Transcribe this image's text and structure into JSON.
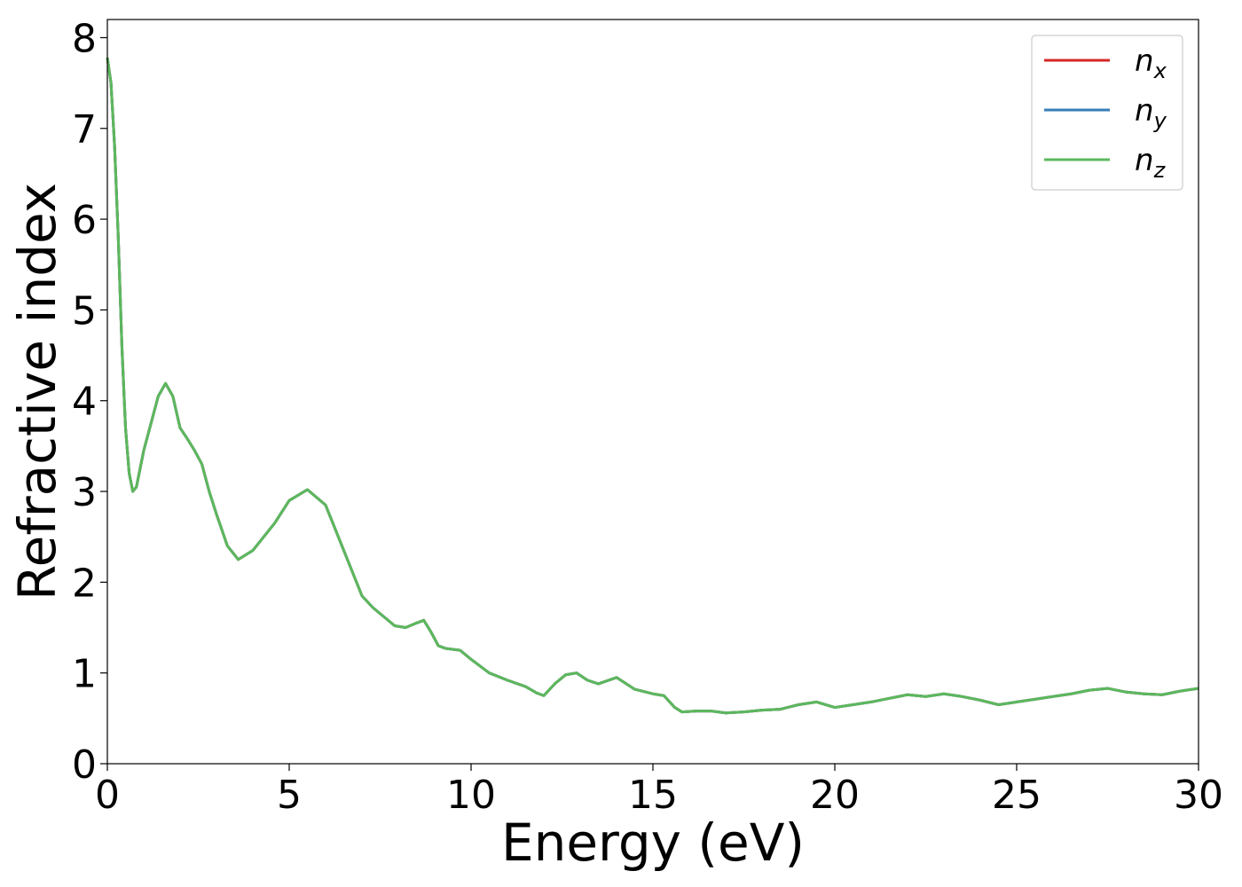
{
  "chart_data": {
    "type": "line",
    "xlabel": "Energy (eV)",
    "ylabel": "Refractive index",
    "xlim": [
      0,
      30
    ],
    "ylim": [
      0,
      8.2
    ],
    "xticks": [
      0,
      5,
      10,
      15,
      20,
      25,
      30
    ],
    "yticks": [
      0,
      1,
      2,
      3,
      4,
      5,
      6,
      7,
      8
    ],
    "grid": false,
    "legend_position": "top-right",
    "series": [
      {
        "name": "n_x",
        "legend_base": "n",
        "legend_sub": "x",
        "color": "#d62728",
        "x": [
          0,
          0.1,
          0.2,
          0.3,
          0.4,
          0.5,
          0.6,
          0.7,
          0.8,
          0.9,
          1.0,
          1.2,
          1.4,
          1.6,
          1.8,
          2.0,
          2.2,
          2.4,
          2.6,
          2.8,
          3.0,
          3.3,
          3.6,
          4.0,
          4.3,
          4.6,
          5.0,
          5.5,
          6.0,
          6.3,
          6.6,
          7.0,
          7.3,
          7.6,
          7.9,
          8.2,
          8.5,
          8.7,
          8.9,
          9.1,
          9.3,
          9.7,
          10.0,
          10.5,
          11.0,
          11.5,
          11.8,
          12.0,
          12.3,
          12.6,
          12.9,
          13.2,
          13.5,
          14.0,
          14.5,
          15.0,
          15.3,
          15.6,
          15.8,
          16.2,
          16.6,
          17.0,
          17.5,
          18.0,
          18.5,
          19.0,
          19.5,
          20.0,
          20.5,
          21.0,
          21.5,
          22.0,
          22.5,
          23.0,
          23.5,
          24.0,
          24.5,
          25.0,
          25.5,
          26.0,
          26.5,
          27.0,
          27.5,
          28.0,
          28.5,
          29.0,
          29.5,
          30.0
        ],
        "y": [
          7.78,
          7.5,
          6.8,
          5.8,
          4.6,
          3.7,
          3.2,
          3.0,
          3.05,
          3.25,
          3.45,
          3.75,
          4.05,
          4.19,
          4.05,
          3.7,
          3.58,
          3.45,
          3.3,
          3.0,
          2.75,
          2.4,
          2.25,
          2.35,
          2.5,
          2.65,
          2.9,
          3.02,
          2.85,
          2.55,
          2.25,
          1.85,
          1.72,
          1.62,
          1.52,
          1.5,
          1.55,
          1.58,
          1.45,
          1.3,
          1.27,
          1.25,
          1.15,
          1.0,
          0.92,
          0.85,
          0.78,
          0.75,
          0.88,
          0.98,
          1.0,
          0.92,
          0.88,
          0.95,
          0.82,
          0.77,
          0.75,
          0.62,
          0.57,
          0.58,
          0.58,
          0.56,
          0.57,
          0.59,
          0.6,
          0.65,
          0.68,
          0.62,
          0.65,
          0.68,
          0.72,
          0.76,
          0.74,
          0.77,
          0.74,
          0.7,
          0.65,
          0.68,
          0.71,
          0.74,
          0.77,
          0.81,
          0.83,
          0.79,
          0.77,
          0.76,
          0.8,
          0.83
        ]
      },
      {
        "name": "n_y",
        "legend_base": "n",
        "legend_sub": "y",
        "color": "#377eb8",
        "x": [
          0,
          0.1,
          0.2,
          0.3,
          0.4,
          0.5,
          0.6,
          0.7,
          0.8,
          0.9,
          1.0,
          1.2,
          1.4,
          1.6,
          1.8,
          2.0,
          2.2,
          2.4,
          2.6,
          2.8,
          3.0,
          3.3,
          3.6,
          4.0,
          4.3,
          4.6,
          5.0,
          5.5,
          6.0,
          6.3,
          6.6,
          7.0,
          7.3,
          7.6,
          7.9,
          8.2,
          8.5,
          8.7,
          8.9,
          9.1,
          9.3,
          9.7,
          10.0,
          10.5,
          11.0,
          11.5,
          11.8,
          12.0,
          12.3,
          12.6,
          12.9,
          13.2,
          13.5,
          14.0,
          14.5,
          15.0,
          15.3,
          15.6,
          15.8,
          16.2,
          16.6,
          17.0,
          17.5,
          18.0,
          18.5,
          19.0,
          19.5,
          20.0,
          20.5,
          21.0,
          21.5,
          22.0,
          22.5,
          23.0,
          23.5,
          24.0,
          24.5,
          25.0,
          25.5,
          26.0,
          26.5,
          27.0,
          27.5,
          28.0,
          28.5,
          29.0,
          29.5,
          30.0
        ],
        "y": [
          7.78,
          7.5,
          6.8,
          5.8,
          4.6,
          3.7,
          3.2,
          3.0,
          3.05,
          3.25,
          3.45,
          3.75,
          4.05,
          4.19,
          4.05,
          3.7,
          3.58,
          3.45,
          3.3,
          3.0,
          2.75,
          2.4,
          2.25,
          2.35,
          2.5,
          2.65,
          2.9,
          3.02,
          2.85,
          2.55,
          2.25,
          1.85,
          1.72,
          1.62,
          1.52,
          1.5,
          1.55,
          1.58,
          1.45,
          1.3,
          1.27,
          1.25,
          1.15,
          1.0,
          0.92,
          0.85,
          0.78,
          0.75,
          0.88,
          0.98,
          1.0,
          0.92,
          0.88,
          0.95,
          0.82,
          0.77,
          0.75,
          0.62,
          0.57,
          0.58,
          0.58,
          0.56,
          0.57,
          0.59,
          0.6,
          0.65,
          0.68,
          0.62,
          0.65,
          0.68,
          0.72,
          0.76,
          0.74,
          0.77,
          0.74,
          0.7,
          0.65,
          0.68,
          0.71,
          0.74,
          0.77,
          0.81,
          0.83,
          0.79,
          0.77,
          0.76,
          0.8,
          0.83
        ]
      },
      {
        "name": "n_z",
        "legend_base": "n",
        "legend_sub": "z",
        "color": "#5cb85c",
        "x": [
          0,
          0.1,
          0.2,
          0.3,
          0.4,
          0.5,
          0.6,
          0.7,
          0.8,
          0.9,
          1.0,
          1.2,
          1.4,
          1.6,
          1.8,
          2.0,
          2.2,
          2.4,
          2.6,
          2.8,
          3.0,
          3.3,
          3.6,
          4.0,
          4.3,
          4.6,
          5.0,
          5.5,
          6.0,
          6.3,
          6.6,
          7.0,
          7.3,
          7.6,
          7.9,
          8.2,
          8.5,
          8.7,
          8.9,
          9.1,
          9.3,
          9.7,
          10.0,
          10.5,
          11.0,
          11.5,
          11.8,
          12.0,
          12.3,
          12.6,
          12.9,
          13.2,
          13.5,
          14.0,
          14.5,
          15.0,
          15.3,
          15.6,
          15.8,
          16.2,
          16.6,
          17.0,
          17.5,
          18.0,
          18.5,
          19.0,
          19.5,
          20.0,
          20.5,
          21.0,
          21.5,
          22.0,
          22.5,
          23.0,
          23.5,
          24.0,
          24.5,
          25.0,
          25.5,
          26.0,
          26.5,
          27.0,
          27.5,
          28.0,
          28.5,
          29.0,
          29.5,
          30.0
        ],
        "y": [
          7.78,
          7.5,
          6.8,
          5.8,
          4.6,
          3.7,
          3.2,
          3.0,
          3.05,
          3.25,
          3.45,
          3.75,
          4.05,
          4.19,
          4.05,
          3.7,
          3.58,
          3.45,
          3.3,
          3.0,
          2.75,
          2.4,
          2.25,
          2.35,
          2.5,
          2.65,
          2.9,
          3.02,
          2.85,
          2.55,
          2.25,
          1.85,
          1.72,
          1.62,
          1.52,
          1.5,
          1.55,
          1.58,
          1.45,
          1.3,
          1.27,
          1.25,
          1.15,
          1.0,
          0.92,
          0.85,
          0.78,
          0.75,
          0.88,
          0.98,
          1.0,
          0.92,
          0.88,
          0.95,
          0.82,
          0.77,
          0.75,
          0.62,
          0.57,
          0.58,
          0.58,
          0.56,
          0.57,
          0.59,
          0.6,
          0.65,
          0.68,
          0.62,
          0.65,
          0.68,
          0.72,
          0.76,
          0.74,
          0.77,
          0.74,
          0.7,
          0.65,
          0.68,
          0.71,
          0.74,
          0.77,
          0.81,
          0.83,
          0.79,
          0.77,
          0.76,
          0.8,
          0.83
        ]
      }
    ]
  }
}
